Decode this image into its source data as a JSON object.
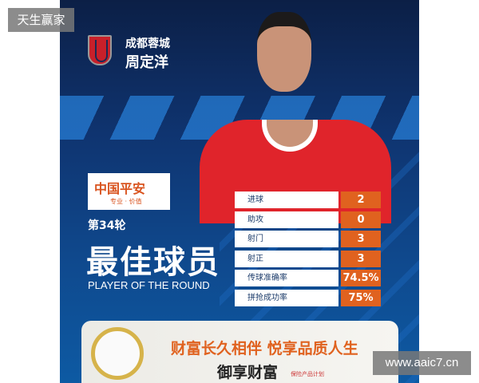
{
  "poster": {
    "club": "成都蓉城",
    "player_name": "周定洋",
    "sponsor": {
      "name": "中国平安",
      "slogan": "专业 · 价值"
    },
    "round": "第34轮",
    "title": "最佳球员",
    "title_en": "PLAYER OF THE ROUND",
    "stats": [
      {
        "label": "进球",
        "value": "2"
      },
      {
        "label": "助攻",
        "value": "0"
      },
      {
        "label": "射门",
        "value": "3"
      },
      {
        "label": "射正",
        "value": "3"
      },
      {
        "label": "传球准确率",
        "value": "74.5%"
      },
      {
        "label": "拼抢成功率",
        "value": "75%"
      }
    ],
    "ad": {
      "headline": "财富长久相伴 悦享品质人生",
      "product": "御享财富",
      "product_sub": "保险产品计划"
    },
    "colors": {
      "accent": "#e0621f",
      "navy": "#0f3470",
      "shirt": "#e0242b"
    }
  },
  "watermarks": {
    "top_left": "天生赢家",
    "bottom_right": "www.aaic7.cn"
  }
}
